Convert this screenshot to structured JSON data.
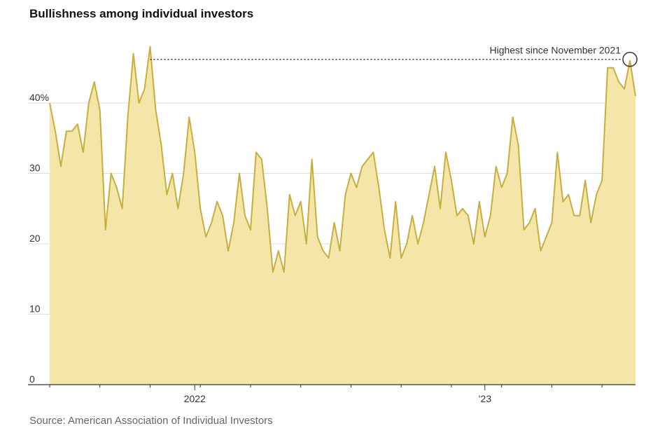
{
  "title": "Bullishness among individual investors",
  "source": "Source: American Association of Individual Investors",
  "colors": {
    "fill": "#f3e6a8",
    "line": "#c9ae3a",
    "grid": "#dddddd",
    "axis": "#333333"
  },
  "chart_data": {
    "type": "area",
    "title": "Bullishness among individual investors",
    "ylim": [
      0,
      48
    ],
    "yticks": [
      {
        "value": 0,
        "label": "0"
      },
      {
        "value": 10,
        "label": "10"
      },
      {
        "value": 20,
        "label": "20"
      },
      {
        "value": 30,
        "label": "30"
      },
      {
        "value": 40,
        "label": "40%"
      }
    ],
    "xticks": [
      {
        "index": 26,
        "label": "2022"
      },
      {
        "index": 78,
        "label": "’23"
      }
    ],
    "grid": true,
    "annotation": {
      "text": "Highest since November 2021",
      "from_index": 18,
      "to_index": 104,
      "value": 46
    },
    "values": [
      40,
      36,
      31,
      36,
      36,
      37,
      33,
      40,
      43,
      39,
      22,
      30,
      28,
      25,
      38,
      47,
      40,
      42,
      48,
      39,
      34,
      27,
      30,
      25,
      30,
      38,
      33,
      25,
      21,
      23,
      26,
      24,
      19,
      23,
      30,
      24,
      22,
      33,
      32,
      25,
      16,
      19,
      16,
      27,
      24,
      26,
      20,
      32,
      21,
      19,
      18,
      23,
      19,
      27,
      30,
      28,
      31,
      32,
      33,
      28,
      22,
      18,
      26,
      18,
      20,
      24,
      20,
      23,
      27,
      31,
      25,
      33,
      29,
      24,
      25,
      24,
      20,
      26,
      21,
      24,
      31,
      28,
      30,
      38,
      34,
      22,
      23,
      25,
      19,
      21,
      23,
      33,
      26,
      27,
      24,
      24,
      29,
      23,
      27,
      29,
      45,
      45,
      43,
      42,
      46,
      41
    ]
  }
}
